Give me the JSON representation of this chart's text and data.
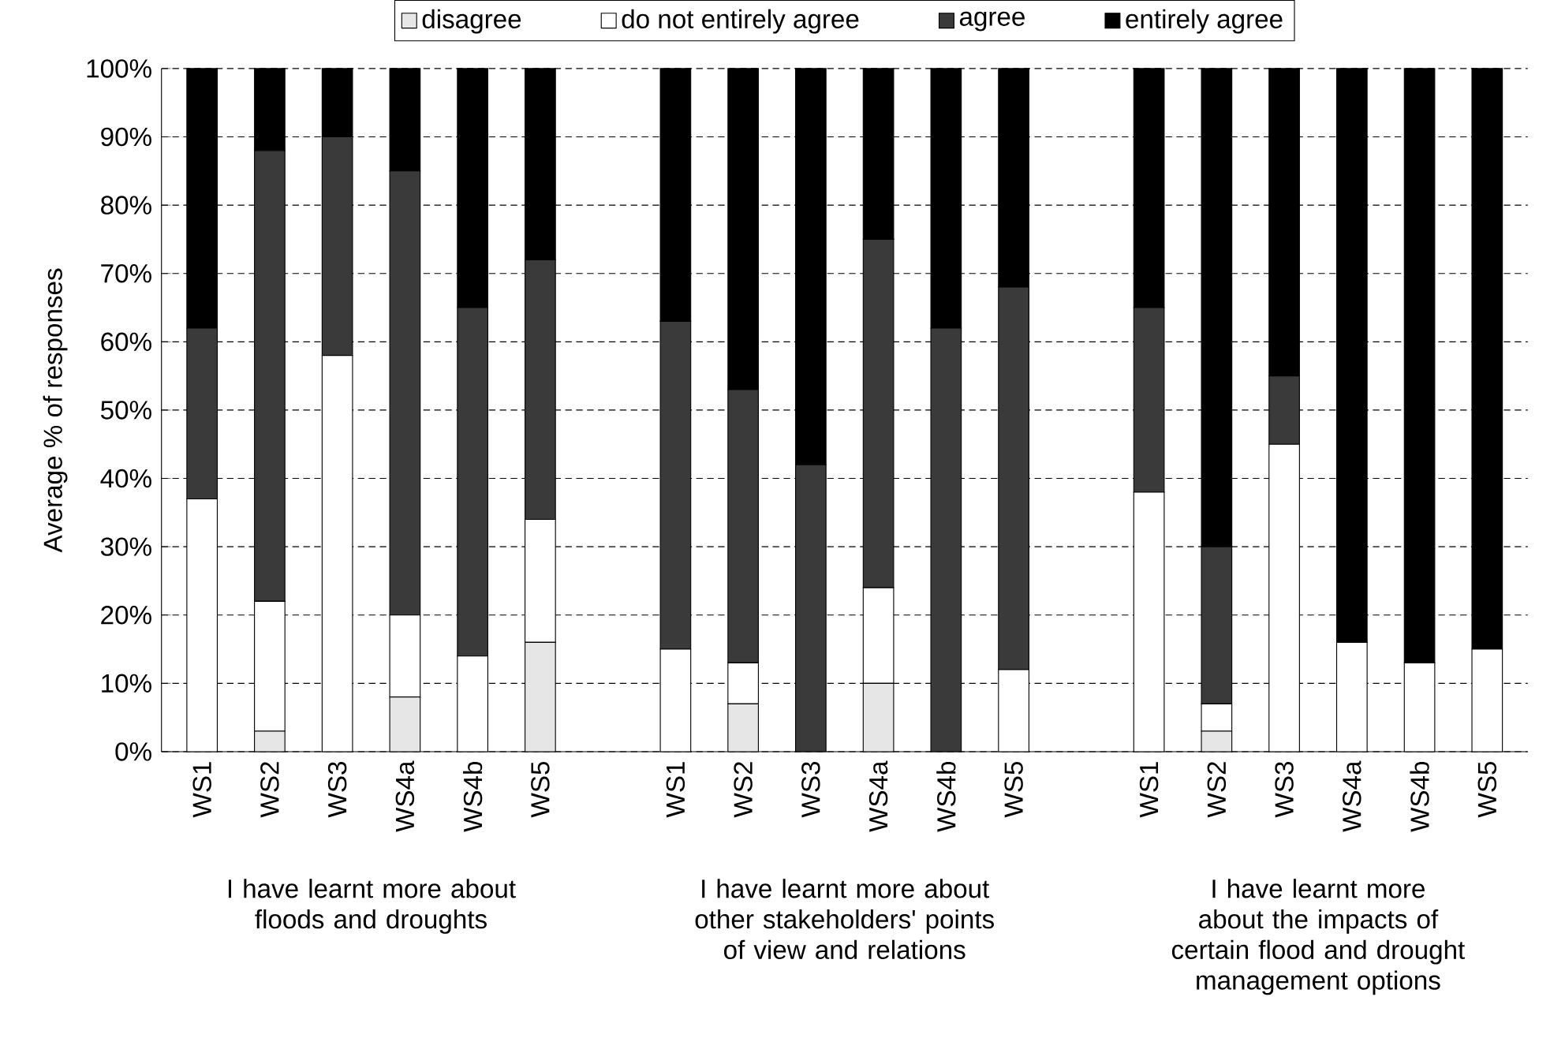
{
  "chart_data": {
    "type": "bar",
    "stacked": true,
    "ylabel": "Average % of responses",
    "categories": [
      "WS1",
      "WS2",
      "WS3",
      "WS4a",
      "WS4b",
      "WS5",
      null,
      "WS1",
      "WS2",
      "WS3",
      "WS4a",
      "WS4b",
      "WS5",
      null,
      "WS1",
      "WS2",
      "WS3",
      "WS4a",
      "WS4b",
      "WS5"
    ],
    "series": [
      {
        "name": "disagree",
        "color": "#e6e6e6",
        "values": [
          0,
          3,
          0,
          8,
          0,
          16,
          null,
          0,
          7,
          0,
          10,
          0,
          0,
          null,
          0,
          3,
          0,
          0,
          0,
          0
        ]
      },
      {
        "name": "do not entirely agree",
        "color": "#ffffff",
        "values": [
          37,
          19,
          58,
          12,
          14,
          18,
          null,
          15,
          6,
          0,
          14,
          0,
          12,
          null,
          38,
          4,
          45,
          16,
          13,
          15
        ]
      },
      {
        "name": "agree",
        "color": "#3a3a3a",
        "values": [
          25,
          66,
          32,
          65,
          51,
          38,
          null,
          48,
          40,
          42,
          51,
          62,
          56,
          null,
          27,
          23,
          10,
          0,
          0,
          0
        ]
      },
      {
        "name": "entirely agree",
        "color": "#000000",
        "values": [
          38,
          12,
          10,
          15,
          35,
          28,
          null,
          37,
          47,
          58,
          25,
          38,
          32,
          null,
          35,
          70,
          45,
          84,
          87,
          85
        ]
      }
    ],
    "ylim": [
      0,
      100
    ],
    "yticks": [
      {
        "value": 0,
        "label": "0%"
      },
      {
        "value": 10,
        "label": "10%"
      },
      {
        "value": 20,
        "label": "20%"
      },
      {
        "value": 30,
        "label": "30%"
      },
      {
        "value": 40,
        "label": "40%"
      },
      {
        "value": 50,
        "label": "50%"
      },
      {
        "value": 60,
        "label": "60%"
      },
      {
        "value": 70,
        "label": "70%"
      },
      {
        "value": 80,
        "label": "80%"
      },
      {
        "value": 90,
        "label": "90%"
      },
      {
        "value": 100,
        "label": "100%"
      }
    ],
    "grid": "y",
    "legend": "top",
    "annotations": [
      "I have learnt more about floods and droughts",
      "I have learnt more about other stakeholders' points of view and relations",
      "I have learnt more about the impacts of certain flood and drought management options"
    ]
  }
}
